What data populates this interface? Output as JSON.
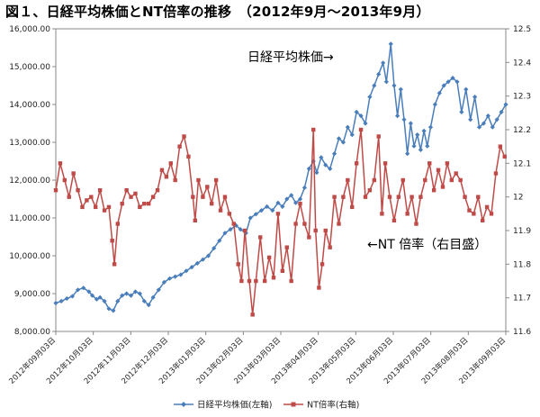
{
  "title": "図１、日経平均株価とNT倍率の推移　（2012年9月～2013年9月）",
  "chart_data": {
    "type": "line",
    "x_tick_labels": [
      "2012年09月03日",
      "2012年10月03日",
      "2012年11月03日",
      "2012年12月03日",
      "2013年01月03日",
      "2013年02月03日",
      "2013年03月03日",
      "2013年04月03日",
      "2013年05月03日",
      "2013年06月03日",
      "2013年07月03日",
      "2013年08月03日",
      "2013年09月03日"
    ],
    "y_left": {
      "min": 8000,
      "max": 16000,
      "step": 1000,
      "tick_labels": [
        "8,000.00",
        "9,000.00",
        "10,000.00",
        "11,000.00",
        "12,000.00",
        "13,000.00",
        "14,000.00",
        "15,000.00",
        "16,000.00"
      ]
    },
    "y_right": {
      "min": 11.6,
      "max": 12.5,
      "step": 0.1,
      "tick_labels": [
        "11.6",
        "11.7",
        "11.8",
        "11.9",
        "12",
        "12.1",
        "12.2",
        "12.3",
        "12.4",
        "12.5"
      ]
    },
    "annotations": {
      "nikkei": "日経平均株価→",
      "nt": "←NT 倍率（右目盛）"
    },
    "grid": false,
    "legend_position": "bottom",
    "series": [
      {
        "name": "日経平均株価(左軸)",
        "axis": "left",
        "color": "#4a7ebb",
        "marker": "diamond",
        "points": [
          [
            0,
            8750
          ],
          [
            0.5,
            8800
          ],
          [
            1,
            8870
          ],
          [
            1.5,
            8930
          ],
          [
            2,
            9100
          ],
          [
            2.5,
            9150
          ],
          [
            3,
            9050
          ],
          [
            3.3,
            8950
          ],
          [
            3.7,
            8850
          ],
          [
            4,
            8900
          ],
          [
            4.4,
            8800
          ],
          [
            4.8,
            8600
          ],
          [
            5.2,
            8550
          ],
          [
            5.6,
            8800
          ],
          [
            6,
            8950
          ],
          [
            6.4,
            9000
          ],
          [
            6.8,
            8950
          ],
          [
            7.2,
            9050
          ],
          [
            7.6,
            9000
          ],
          [
            8,
            8800
          ],
          [
            8.4,
            8700
          ],
          [
            8.8,
            8900
          ],
          [
            9.3,
            9100
          ],
          [
            9.8,
            9300
          ],
          [
            10.3,
            9400
          ],
          [
            10.8,
            9450
          ],
          [
            11.3,
            9500
          ],
          [
            11.8,
            9600
          ],
          [
            12.3,
            9700
          ],
          [
            12.8,
            9800
          ],
          [
            13.3,
            9900
          ],
          [
            13.8,
            10000
          ],
          [
            14.3,
            10200
          ],
          [
            14.8,
            10400
          ],
          [
            15.3,
            10600
          ],
          [
            15.8,
            10700
          ],
          [
            16.3,
            10800
          ],
          [
            16.7,
            10700
          ],
          [
            17.2,
            10600
          ],
          [
            17.6,
            11000
          ],
          [
            18.1,
            11100
          ],
          [
            18.6,
            11200
          ],
          [
            19.1,
            11300
          ],
          [
            19.6,
            11200
          ],
          [
            20.1,
            11400
          ],
          [
            20.5,
            11300
          ],
          [
            20.9,
            11500
          ],
          [
            21.3,
            11600
          ],
          [
            21.7,
            11400
          ],
          [
            22.1,
            11500
          ],
          [
            22.5,
            11800
          ],
          [
            22.9,
            12300
          ],
          [
            23.3,
            12500
          ],
          [
            23.6,
            12200
          ],
          [
            24,
            12600
          ],
          [
            24.4,
            12400
          ],
          [
            24.8,
            12300
          ],
          [
            25.2,
            12700
          ],
          [
            25.6,
            13100
          ],
          [
            26,
            13000
          ],
          [
            26.4,
            13400
          ],
          [
            26.8,
            13200
          ],
          [
            27.2,
            13800
          ],
          [
            27.6,
            13700
          ],
          [
            28,
            13500
          ],
          [
            28.4,
            14200
          ],
          [
            28.8,
            14500
          ],
          [
            29.2,
            14800
          ],
          [
            29.6,
            15100
          ],
          [
            29.9,
            14600
          ],
          [
            30.3,
            15600
          ],
          [
            30.6,
            14500
          ],
          [
            30.9,
            13700
          ],
          [
            31.2,
            14400
          ],
          [
            31.5,
            13600
          ],
          [
            31.8,
            12700
          ],
          [
            32.1,
            13500
          ],
          [
            32.4,
            12900
          ],
          [
            32.7,
            13200
          ],
          [
            33,
            12800
          ],
          [
            33.3,
            13300
          ],
          [
            33.6,
            12900
          ],
          [
            33.9,
            13400
          ],
          [
            34.3,
            14000
          ],
          [
            34.7,
            14300
          ],
          [
            35.1,
            14500
          ],
          [
            35.5,
            14600
          ],
          [
            35.9,
            14700
          ],
          [
            36.3,
            14600
          ],
          [
            36.7,
            13800
          ],
          [
            37.1,
            14400
          ],
          [
            37.5,
            13600
          ],
          [
            37.9,
            14200
          ],
          [
            38.3,
            13400
          ],
          [
            38.7,
            13500
          ],
          [
            39.1,
            13700
          ],
          [
            39.5,
            13400
          ],
          [
            39.9,
            13600
          ],
          [
            40.3,
            13800
          ],
          [
            40.7,
            14000
          ]
        ]
      },
      {
        "name": "NT倍率(右軸)",
        "axis": "right",
        "color": "#be4b48",
        "marker": "square",
        "points": [
          [
            0,
            12.02
          ],
          [
            0.4,
            12.1
          ],
          [
            0.8,
            12.05
          ],
          [
            1.2,
            12.0
          ],
          [
            1.6,
            12.07
          ],
          [
            2,
            12.02
          ],
          [
            2.4,
            11.97
          ],
          [
            2.8,
            11.99
          ],
          [
            3.2,
            12.0
          ],
          [
            3.6,
            11.97
          ],
          [
            4,
            12.02
          ],
          [
            4.4,
            11.96
          ],
          [
            4.8,
            11.97
          ],
          [
            5.1,
            11.87
          ],
          [
            5.3,
            11.8
          ],
          [
            5.6,
            11.92
          ],
          [
            6,
            11.98
          ],
          [
            6.4,
            12.02
          ],
          [
            6.8,
            12.0
          ],
          [
            7.2,
            12.01
          ],
          [
            7.6,
            11.97
          ],
          [
            8,
            11.98
          ],
          [
            8.4,
            11.98
          ],
          [
            8.8,
            12.0
          ],
          [
            9.2,
            12.02
          ],
          [
            9.6,
            12.08
          ],
          [
            10,
            12.06
          ],
          [
            10.4,
            12.1
          ],
          [
            10.8,
            12.05
          ],
          [
            11.2,
            12.15
          ],
          [
            11.6,
            12.18
          ],
          [
            12,
            12.12
          ],
          [
            12.4,
            12.0
          ],
          [
            12.6,
            11.93
          ],
          [
            12.9,
            12.05
          ],
          [
            13.3,
            12.0
          ],
          [
            13.7,
            12.03
          ],
          [
            14.1,
            11.98
          ],
          [
            14.5,
            12.05
          ],
          [
            14.9,
            11.96
          ],
          [
            15.3,
            12.0
          ],
          [
            15.7,
            11.95
          ],
          [
            16.1,
            11.92
          ],
          [
            16.5,
            11.8
          ],
          [
            16.8,
            11.75
          ],
          [
            17.1,
            11.9
          ],
          [
            17.5,
            11.75
          ],
          [
            17.8,
            11.65
          ],
          [
            18.1,
            11.75
          ],
          [
            18.5,
            11.88
          ],
          [
            18.9,
            11.75
          ],
          [
            19.3,
            11.82
          ],
          [
            19.7,
            11.76
          ],
          [
            20.1,
            11.95
          ],
          [
            20.5,
            11.78
          ],
          [
            20.9,
            11.85
          ],
          [
            21.3,
            11.75
          ],
          [
            21.7,
            11.92
          ],
          [
            22.1,
            11.98
          ],
          [
            22.5,
            11.92
          ],
          [
            22.9,
            11.88
          ],
          [
            23.3,
            12.2
          ],
          [
            23.5,
            11.9
          ],
          [
            23.8,
            11.73
          ],
          [
            24.1,
            11.8
          ],
          [
            24.4,
            11.9
          ],
          [
            24.8,
            11.85
          ],
          [
            25.2,
            12.0
          ],
          [
            25.6,
            11.92
          ],
          [
            26,
            12.0
          ],
          [
            26.4,
            12.05
          ],
          [
            26.8,
            11.97
          ],
          [
            27.2,
            12.1
          ],
          [
            27.6,
            12.2
          ],
          [
            28,
            12.0
          ],
          [
            28.4,
            12.02
          ],
          [
            28.8,
            12.05
          ],
          [
            29.2,
            12.18
          ],
          [
            29.5,
            11.95
          ],
          [
            29.8,
            12.1
          ],
          [
            30.2,
            12.0
          ],
          [
            30.6,
            11.93
          ],
          [
            31,
            12.0
          ],
          [
            31.4,
            12.05
          ],
          [
            31.8,
            11.95
          ],
          [
            32.2,
            12.0
          ],
          [
            32.6,
            11.92
          ],
          [
            33,
            12.0
          ],
          [
            33.4,
            12.05
          ],
          [
            33.8,
            12.1
          ],
          [
            34.2,
            12.02
          ],
          [
            34.6,
            12.08
          ],
          [
            35,
            12.03
          ],
          [
            35.4,
            12.1
          ],
          [
            35.8,
            12.05
          ],
          [
            36.2,
            12.07
          ],
          [
            36.6,
            12.05
          ],
          [
            37,
            12.0
          ],
          [
            37.4,
            11.96
          ],
          [
            37.8,
            11.95
          ],
          [
            38.2,
            12.0
          ],
          [
            38.6,
            11.93
          ],
          [
            39,
            11.97
          ],
          [
            39.4,
            11.95
          ],
          [
            39.8,
            12.07
          ],
          [
            40.2,
            12.15
          ],
          [
            40.6,
            12.12
          ]
        ]
      }
    ]
  }
}
